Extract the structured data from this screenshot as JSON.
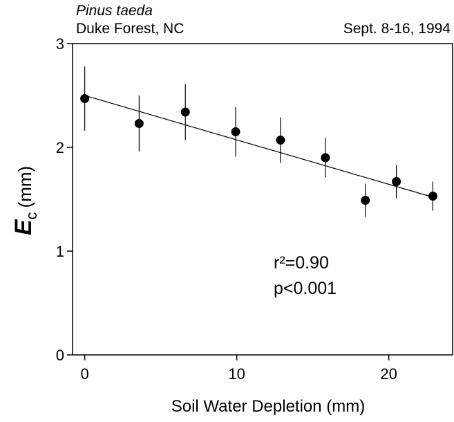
{
  "chart_data": {
    "type": "scatter",
    "title": "Pinus taeda",
    "subtitle": "Duke Forest, NC",
    "date": "Sept. 8-16, 1994",
    "xlabel": "Soil Water Depletion (mm)",
    "ylabel": {
      "symbol": "E",
      "subscript": "c",
      "unit": "(mm)"
    },
    "annotations": [
      "r²=0.90",
      "p<0.001"
    ],
    "x": [
      0,
      3.58,
      6.62,
      9.93,
      12.88,
      15.83,
      18.46,
      20.5,
      22.9
    ],
    "values": [
      2.47,
      2.23,
      2.34,
      2.15,
      2.07,
      1.9,
      1.49,
      1.67,
      1.53
    ],
    "errors": [
      0.31,
      0.27,
      0.27,
      0.24,
      0.22,
      0.19,
      0.16,
      0.16,
      0.14
    ],
    "color": "#000000",
    "fit_line": {
      "x": [
        0,
        22.9
      ],
      "values": [
        2.5,
        1.52
      ]
    },
    "xlim": [
      -0.8,
      24.2
    ],
    "xticks": [
      0,
      10,
      20
    ],
    "ylim": [
      0,
      3
    ],
    "yticks": [
      0,
      1,
      2,
      3
    ]
  }
}
